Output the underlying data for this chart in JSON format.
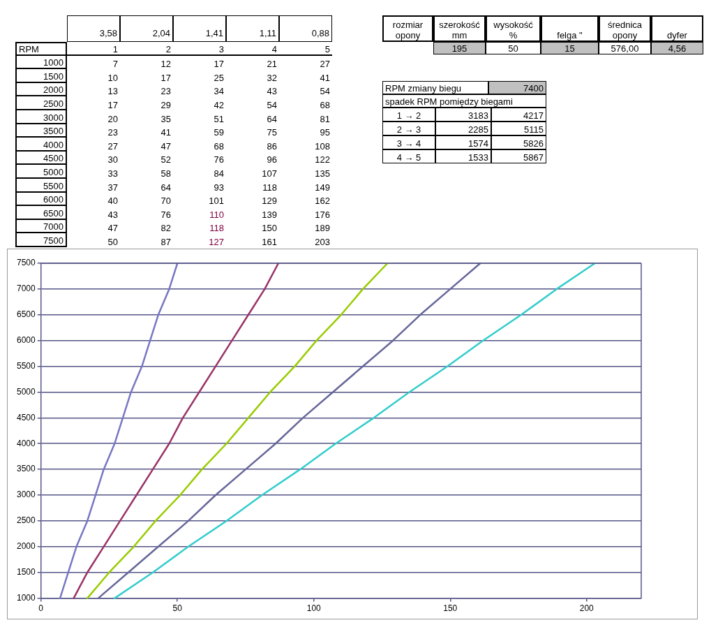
{
  "chart_data": {
    "type": "line",
    "xlim": [
      0,
      220
    ],
    "xticks": [
      0,
      50,
      100,
      150,
      200
    ],
    "ylim": [
      1000,
      7500
    ],
    "yticks": [
      1000,
      1500,
      2000,
      2500,
      3000,
      3500,
      4000,
      4500,
      5000,
      5500,
      6000,
      6500,
      7000,
      7500
    ],
    "grid": "y",
    "legend": false,
    "marker": "none",
    "series": [
      {
        "color": "#7777c4",
        "x": [
          7,
          10,
          13,
          17,
          20,
          23,
          27,
          30,
          33,
          37,
          40,
          43,
          47,
          50
        ],
        "values": [
          1000,
          1500,
          2000,
          2500,
          3000,
          3500,
          4000,
          4500,
          5000,
          5500,
          6000,
          6500,
          7000,
          7500
        ]
      },
      {
        "color": "#993366",
        "x": [
          12,
          17,
          23,
          29,
          35,
          41,
          47,
          52,
          58,
          64,
          70,
          76,
          82,
          87
        ],
        "values": [
          1000,
          1500,
          2000,
          2500,
          3000,
          3500,
          4000,
          4500,
          5000,
          5500,
          6000,
          6500,
          7000,
          7500
        ]
      },
      {
        "color": "#99cc00",
        "x": [
          17,
          25,
          34,
          42,
          51,
          59,
          68,
          76,
          84,
          93,
          101,
          110,
          118,
          127
        ],
        "values": [
          1000,
          1500,
          2000,
          2500,
          3000,
          3500,
          4000,
          4500,
          5000,
          5500,
          6000,
          6500,
          7000,
          7500
        ]
      },
      {
        "color": "#666699",
        "x": [
          21,
          32,
          43,
          54,
          64,
          75,
          86,
          96,
          107,
          118,
          129,
          139,
          150,
          161
        ],
        "values": [
          1000,
          1500,
          2000,
          2500,
          3000,
          3500,
          4000,
          4500,
          5000,
          5500,
          6000,
          6500,
          7000,
          7500
        ]
      },
      {
        "color": "#33cccc",
        "x": [
          27,
          41,
          54,
          68,
          81,
          95,
          108,
          122,
          135,
          149,
          162,
          176,
          189,
          203
        ],
        "values": [
          1000,
          1500,
          2000,
          2500,
          3000,
          3500,
          4000,
          4500,
          5000,
          5500,
          6000,
          6500,
          7000,
          7500
        ]
      }
    ],
    "annotations": [
      "3,58",
      "2,04",
      "1,41",
      "1,11",
      "0,88",
      "RPM",
      "1",
      "2",
      "3",
      "4",
      "5",
      "rozmiar opony",
      "szerokość mm",
      "wysokość %",
      "felga \"",
      "średnica opony",
      "dyfer",
      "195",
      "50",
      "15",
      "576,00",
      "4,56",
      "RPM zmiany biegu",
      "7400",
      "spadek RPM pomiędzy biegami",
      "1 → 2",
      "3183",
      "4217",
      "2 → 3",
      "2285",
      "5115",
      "3 → 4",
      "1574",
      "5826",
      "4 → 5",
      "1533",
      "5867",
      "1000",
      "7",
      "12",
      "17",
      "21",
      "27",
      "1500",
      "10",
      "17",
      "25",
      "32",
      "41",
      "2000",
      "13",
      "23",
      "34",
      "43",
      "54",
      "2500",
      "17",
      "29",
      "42",
      "54",
      "68",
      "3000",
      "20",
      "35",
      "51",
      "64",
      "81",
      "3500",
      "23",
      "41",
      "59",
      "75",
      "95",
      "4000",
      "27",
      "47",
      "68",
      "86",
      "108",
      "4500",
      "30",
      "52",
      "76",
      "96",
      "122",
      "5000",
      "33",
      "58",
      "84",
      "107",
      "135",
      "5500",
      "37",
      "64",
      "93",
      "118",
      "149",
      "6000",
      "40",
      "70",
      "101",
      "129",
      "162",
      "6500",
      "43",
      "76",
      "110",
      "139",
      "176",
      "7000",
      "47",
      "82",
      "118",
      "150",
      "189",
      "7500",
      "50",
      "87",
      "127",
      "161",
      "203"
    ]
  }
}
